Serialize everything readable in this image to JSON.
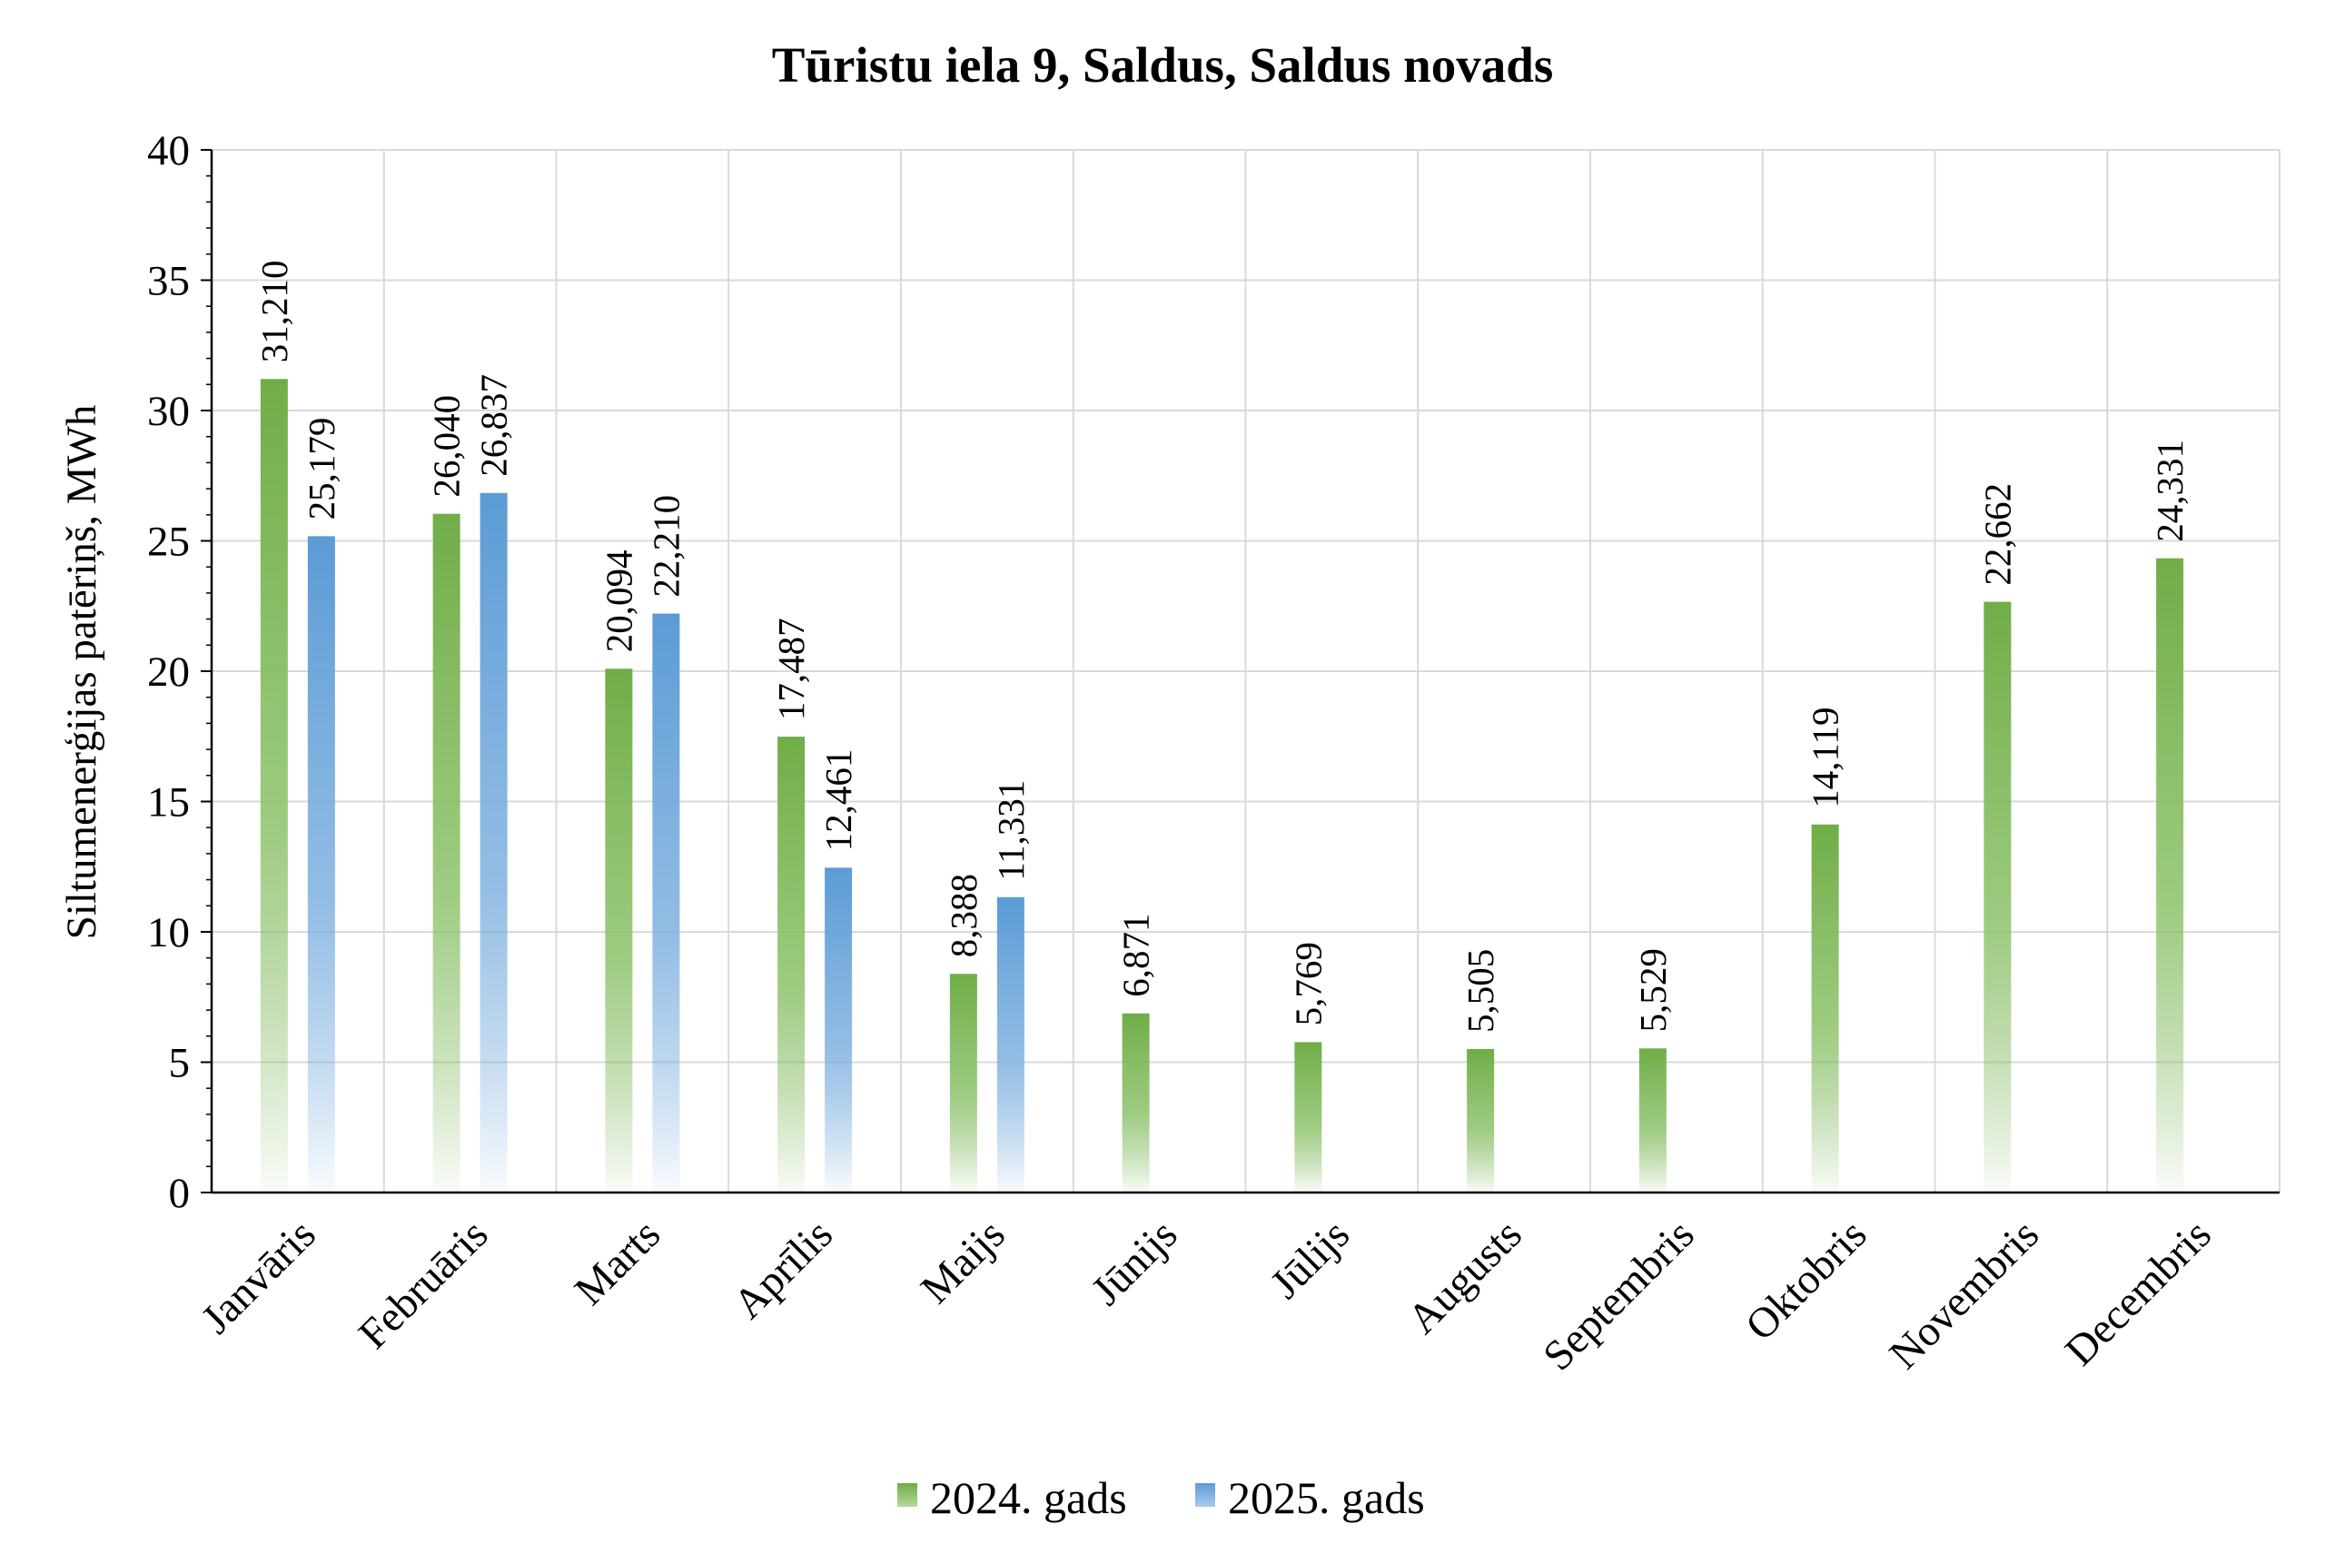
{
  "chart_data": {
    "type": "bar",
    "title": "Tūristu iela 9, Saldus, Saldus novads",
    "ylabel": "Siltumenerģijas patēriņš, MWh",
    "xlabel": "",
    "ylim": [
      0,
      40
    ],
    "yticks": [
      0,
      5,
      10,
      15,
      20,
      25,
      30,
      35,
      40
    ],
    "grid": true,
    "legend_position": "bottom",
    "categories": [
      "Janvāris",
      "Februāris",
      "Marts",
      "Aprīlis",
      "Maijs",
      "Jūnijs",
      "Jūlijs",
      "Augusts",
      "Septembris",
      "Oktobris",
      "Novembris",
      "Decembris"
    ],
    "series": [
      {
        "name": "2024. gads",
        "color": "#70ad47",
        "values": [
          31.21,
          26.04,
          20.094,
          17.487,
          8.388,
          6.871,
          5.769,
          5.505,
          5.529,
          14.119,
          22.662,
          24.331
        ],
        "labels": [
          "31,210",
          "26,040",
          "20,094",
          "17,487",
          "8,388",
          "6,871",
          "5,769",
          "5,505",
          "5,529",
          "14,119",
          "22,662",
          "24,331"
        ]
      },
      {
        "name": "2025. gads",
        "color": "#5b9bd5",
        "values": [
          25.179,
          26.837,
          22.21,
          12.461,
          11.331,
          null,
          null,
          null,
          null,
          null,
          null,
          null
        ],
        "labels": [
          "25,179",
          "26,837",
          "22,210",
          "12,461",
          "11,331",
          null,
          null,
          null,
          null,
          null,
          null,
          null
        ]
      }
    ]
  }
}
